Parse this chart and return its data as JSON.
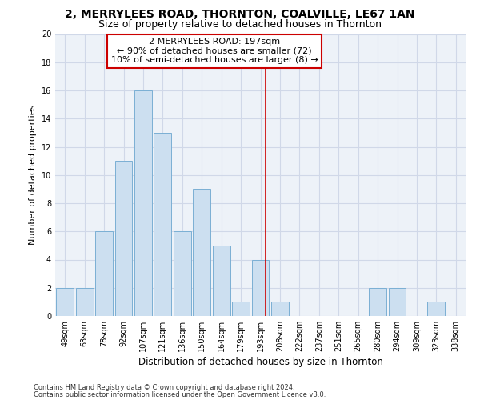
{
  "title": "2, MERRYLEES ROAD, THORNTON, COALVILLE, LE67 1AN",
  "subtitle": "Size of property relative to detached houses in Thornton",
  "xlabel": "Distribution of detached houses by size in Thornton",
  "ylabel": "Number of detached properties",
  "footnote1": "Contains HM Land Registry data © Crown copyright and database right 2024.",
  "footnote2": "Contains public sector information licensed under the Open Government Licence v3.0.",
  "categories": [
    "49sqm",
    "63sqm",
    "78sqm",
    "92sqm",
    "107sqm",
    "121sqm",
    "136sqm",
    "150sqm",
    "164sqm",
    "179sqm",
    "193sqm",
    "208sqm",
    "222sqm",
    "237sqm",
    "251sqm",
    "265sqm",
    "280sqm",
    "294sqm",
    "309sqm",
    "323sqm",
    "338sqm"
  ],
  "values": [
    2,
    2,
    6,
    11,
    16,
    13,
    6,
    9,
    5,
    1,
    4,
    1,
    0,
    0,
    0,
    0,
    2,
    2,
    0,
    1,
    0
  ],
  "bar_color": "#ccdff0",
  "bar_edge_color": "#7aafd4",
  "highlight_line_color": "#cc0000",
  "annotation_line1": "2 MERRYLEES ROAD: 197sqm",
  "annotation_line2": "← 90% of detached houses are smaller (72)",
  "annotation_line3": "10% of semi-detached houses are larger (8) →",
  "annotation_box_color": "#cc0000",
  "ylim": [
    0,
    20
  ],
  "yticks": [
    0,
    2,
    4,
    6,
    8,
    10,
    12,
    14,
    16,
    18,
    20
  ],
  "grid_color": "#d0d8e8",
  "bg_color": "#edf2f8",
  "title_fontsize": 10,
  "subtitle_fontsize": 9,
  "axis_label_fontsize": 8,
  "tick_fontsize": 7,
  "footnote_fontsize": 6,
  "annot_fontsize": 8
}
